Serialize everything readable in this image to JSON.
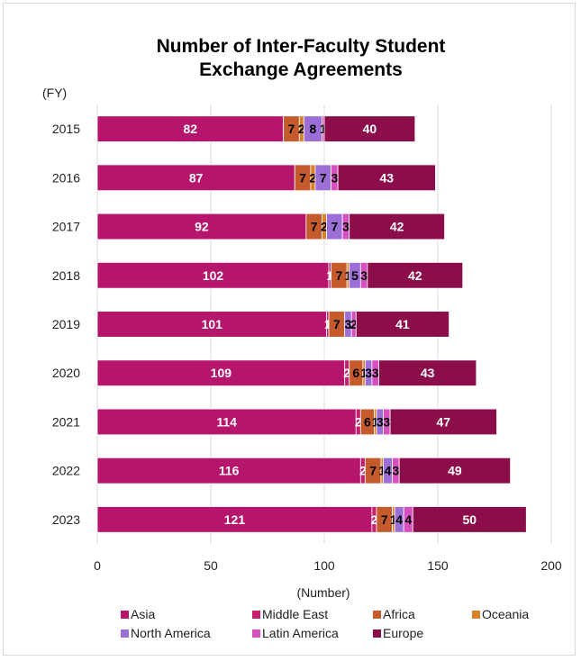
{
  "chart_data": {
    "type": "bar",
    "orientation": "horizontal",
    "stacked": true,
    "title": "Number of Inter-Faculty Student Exchange Agreements",
    "title_lines": [
      "Number of Inter-Faculty Student",
      "Exchange Agreements"
    ],
    "ylabel": "(FY)",
    "xlabel": "(Number)",
    "xlim": [
      0,
      200
    ],
    "xticks": [
      0,
      50,
      100,
      150,
      200
    ],
    "grid": true,
    "legend": "bottom",
    "categories": [
      "2015",
      "2016",
      "2017",
      "2018",
      "2019",
      "2020",
      "2021",
      "2022",
      "2023"
    ],
    "series": [
      {
        "name": "Asia",
        "color": "#b5166b",
        "label_color": "#ffffff",
        "values": [
          82,
          87,
          92,
          102,
          101,
          109,
          114,
          116,
          121
        ]
      },
      {
        "name": "Middle East",
        "color": "#c71f6e",
        "label_color": "#ffffff",
        "values": [
          0,
          0,
          0,
          1,
          1,
          2,
          2,
          2,
          2
        ]
      },
      {
        "name": "Africa",
        "color": "#c55a2d",
        "label_color": "#000000",
        "values": [
          7,
          7,
          7,
          7,
          7,
          6,
          6,
          7,
          7
        ]
      },
      {
        "name": "Oceania",
        "color": "#d9822b",
        "label_color": "#000000",
        "values": [
          2,
          2,
          2,
          1,
          0,
          1,
          1,
          1,
          1
        ]
      },
      {
        "name": "North America",
        "color": "#9c6fd6",
        "label_color": "#000000",
        "values": [
          8,
          7,
          7,
          5,
          3,
          3,
          3,
          4,
          4
        ]
      },
      {
        "name": "Latin America",
        "color": "#d84fc0",
        "label_color": "#000000",
        "values": [
          1,
          3,
          3,
          3,
          2,
          3,
          3,
          3,
          4
        ]
      },
      {
        "name": "Europe",
        "color": "#8b0e4a",
        "label_color": "#ffffff",
        "values": [
          40,
          43,
          42,
          42,
          41,
          43,
          47,
          49,
          50
        ]
      }
    ]
  }
}
